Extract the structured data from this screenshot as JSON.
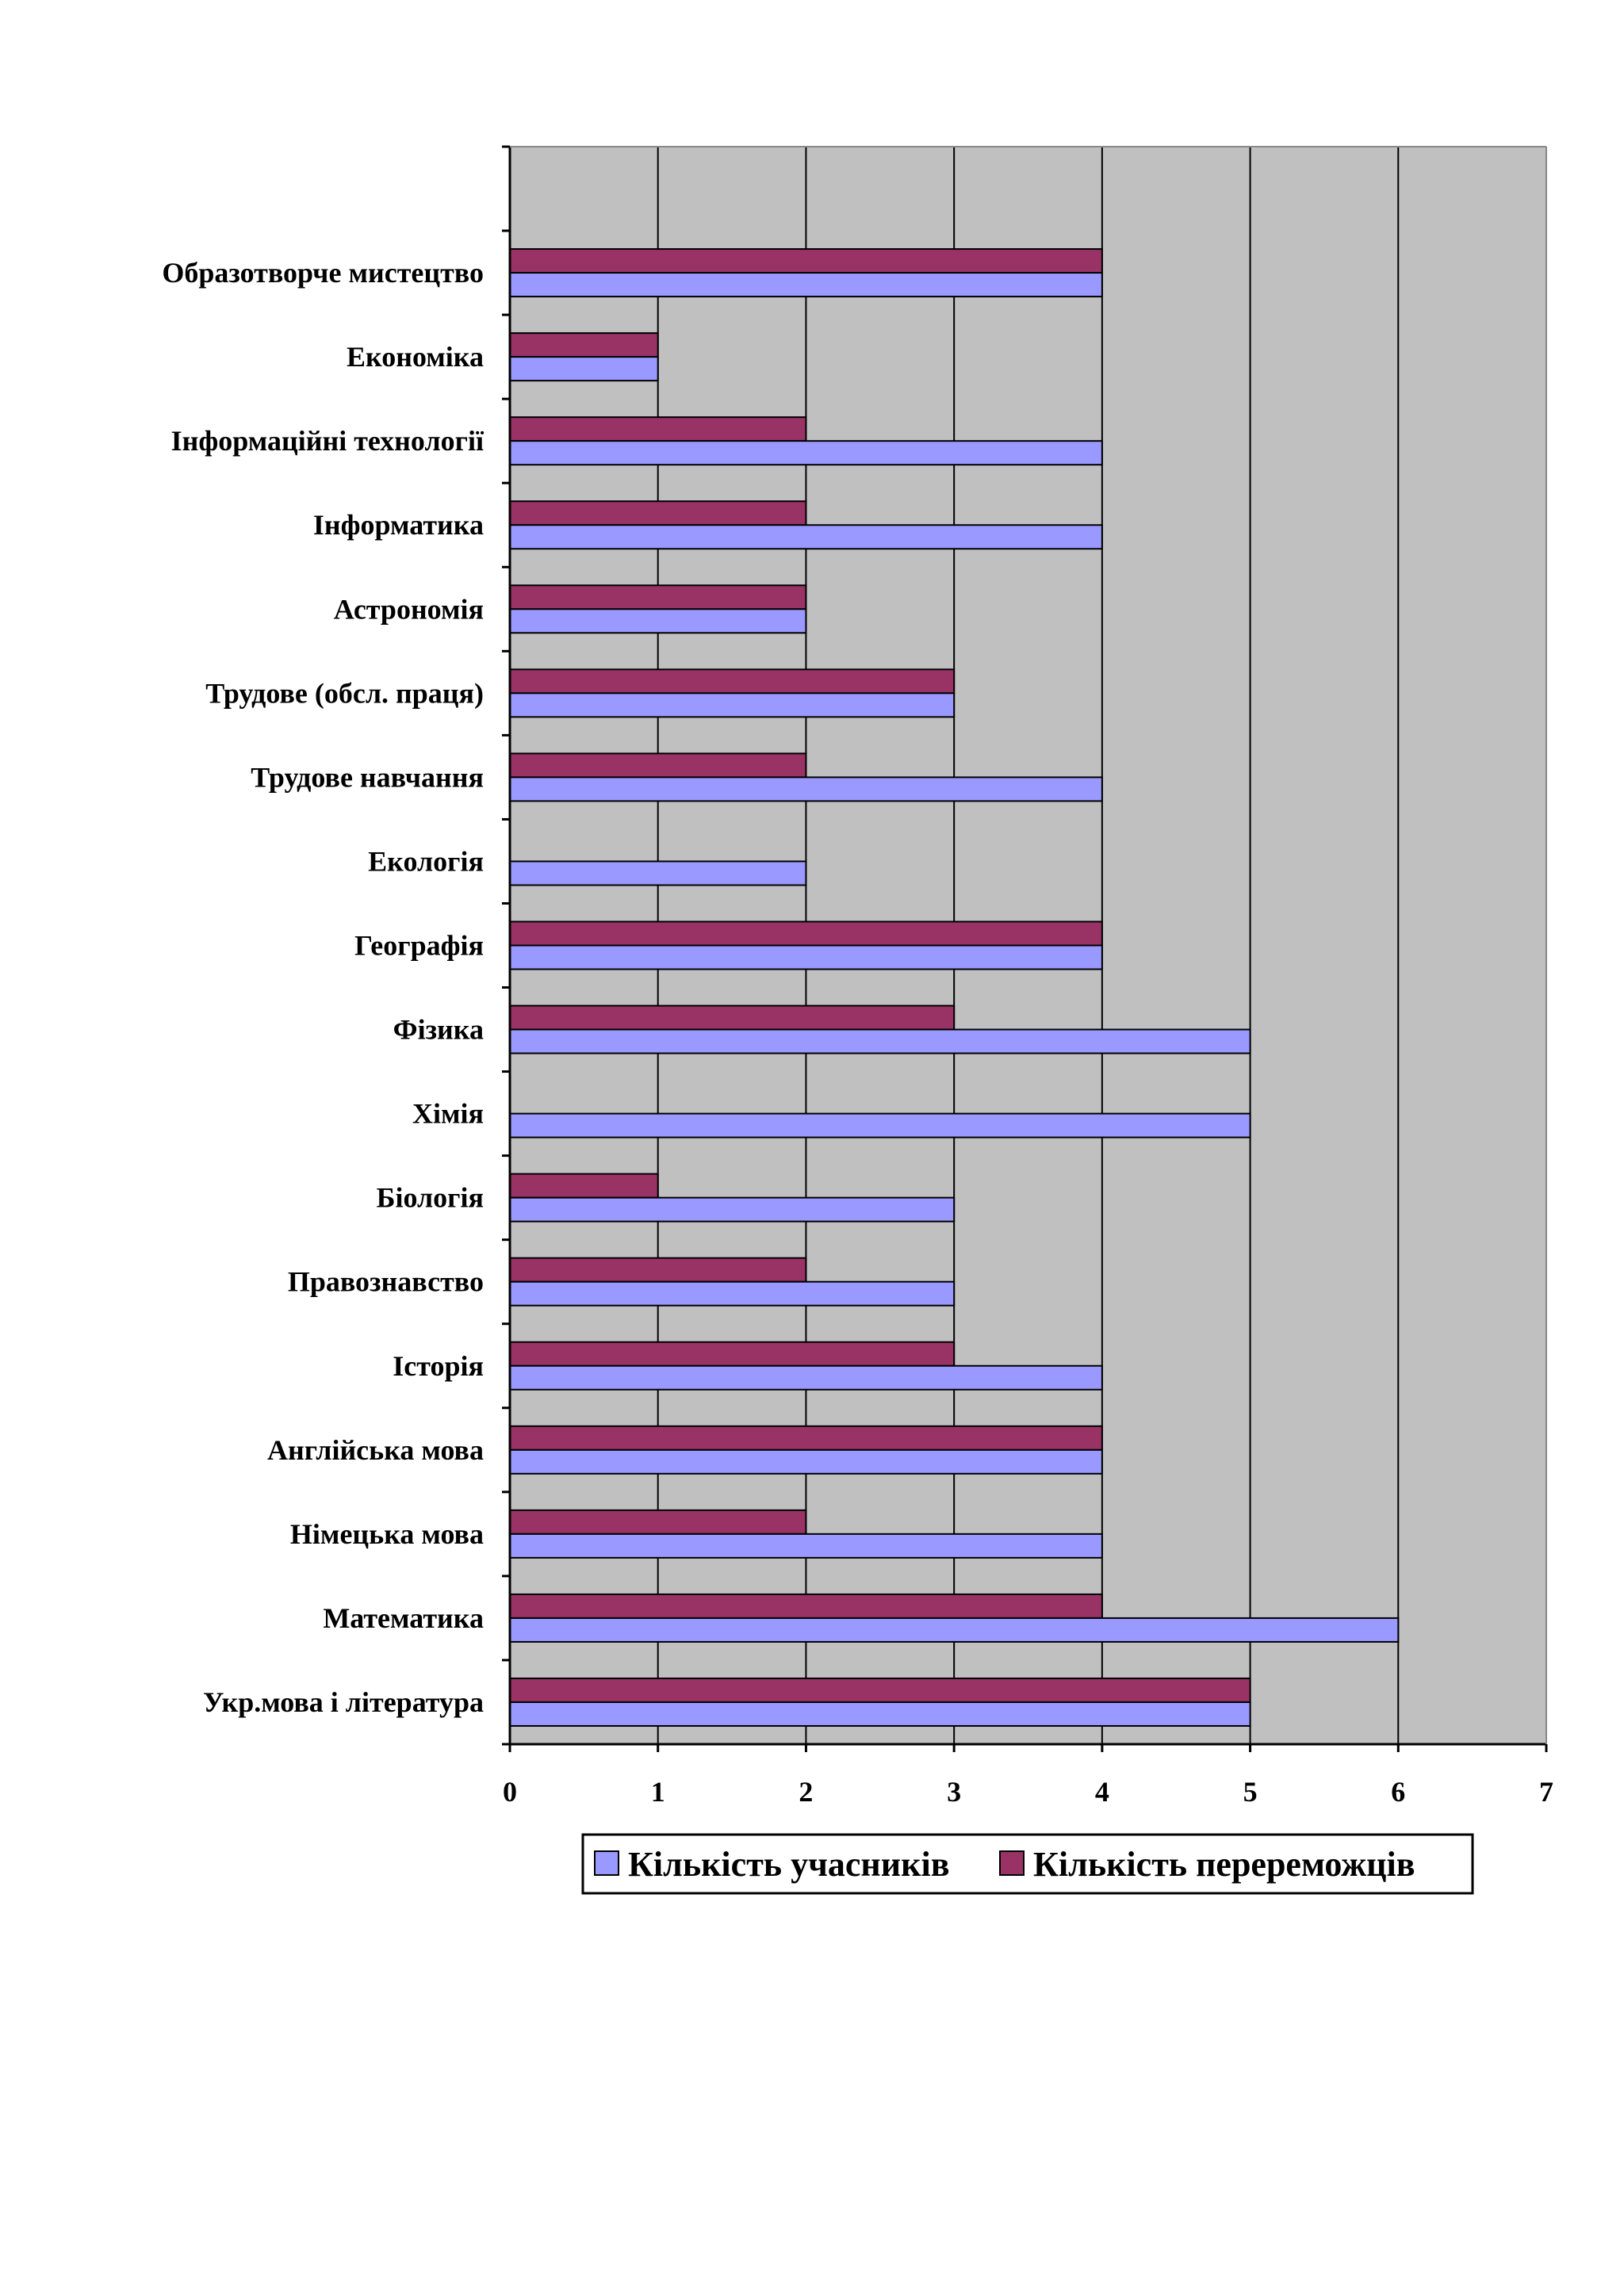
{
  "chart_data": {
    "type": "bar",
    "orientation": "horizontal",
    "categories": [
      "Укр.мова і література",
      "Математика",
      "Німецька мова",
      "Англійська мова",
      "Історія",
      "Правознавство",
      "Біологія",
      "Хімія",
      "Фізика",
      "Географія",
      "Екологія",
      "Трудове навчання",
      "Трудове (обсл. праця)",
      "Астрономія",
      "Інформатика",
      "Інформаційні технології",
      "Економіка",
      "Образотворче мистецтво",
      ""
    ],
    "series": [
      {
        "name": "Кількість учасників",
        "values": [
          5,
          6,
          4,
          4,
          4,
          3,
          3,
          5,
          5,
          4,
          2,
          4,
          3,
          2,
          4,
          4,
          1,
          4,
          null
        ]
      },
      {
        "name": "Кількість перереможців",
        "values": [
          5,
          4,
          2,
          4,
          3,
          2,
          1,
          0,
          3,
          4,
          0,
          2,
          3,
          2,
          2,
          2,
          1,
          4,
          null
        ]
      }
    ],
    "xlim": [
      0,
      7
    ],
    "xticks": [
      "0",
      "1",
      "2",
      "3",
      "4",
      "5",
      "6",
      "7"
    ],
    "grid": true,
    "legend_position": "bottom",
    "title": "",
    "xlabel": "",
    "ylabel": ""
  },
  "colors": {
    "series_participants": "#9999ff",
    "series_winners": "#993366",
    "plot_background": "#c0c0c0",
    "grid": "#000000",
    "page_background": "#ffffff"
  }
}
